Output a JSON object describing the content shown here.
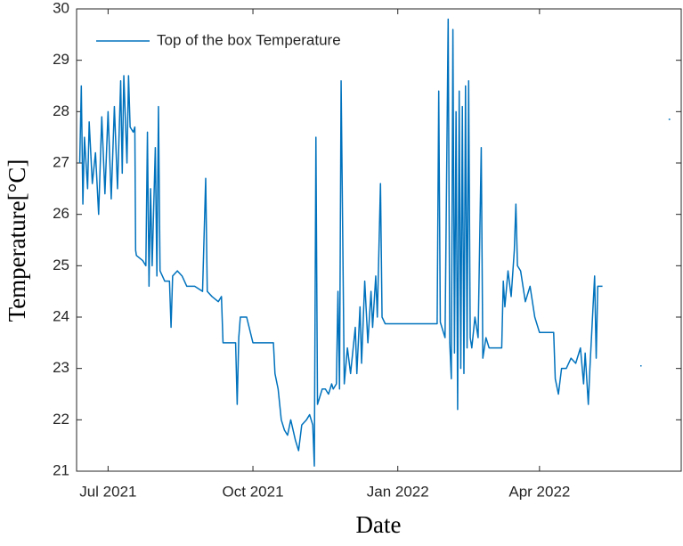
{
  "chart_data": {
    "type": "line",
    "xlabel": "Date",
    "ylabel": "Temperature[°C]",
    "x": [
      -18,
      -17,
      -16,
      -15,
      -13,
      -12,
      -10,
      -8,
      -6,
      -4,
      -2,
      0,
      2,
      4,
      6,
      8,
      9,
      10,
      12,
      13,
      14,
      16,
      17,
      17.5,
      18,
      22,
      24,
      25,
      26,
      27,
      28,
      30,
      31,
      32,
      33,
      36,
      39,
      40,
      41,
      44,
      47,
      50,
      55,
      60,
      62,
      63,
      66,
      70,
      72,
      73,
      78,
      81,
      82,
      83,
      84,
      88,
      92,
      105,
      106,
      108,
      110,
      112,
      114,
      116,
      119,
      121,
      123,
      126,
      128,
      130,
      131,
      132,
      133,
      136,
      138,
      140,
      142,
      143,
      145,
      146,
      147,
      148,
      150,
      152,
      154,
      157,
      158,
      160,
      161,
      163,
      165,
      167,
      168,
      170,
      171,
      173,
      174,
      176,
      209,
      210,
      211,
      214,
      216,
      217,
      218,
      219,
      220,
      221,
      222,
      223,
      224,
      225,
      226,
      227,
      228,
      229,
      230,
      231,
      233,
      235,
      237,
      238,
      240,
      242,
      245,
      250,
      251,
      252,
      254,
      256,
      258,
      259,
      260,
      262,
      265,
      268,
      271,
      274,
      283,
      284,
      286,
      288,
      291,
      294,
      297,
      300,
      302,
      303,
      305,
      306,
      308,
      309,
      310,
      311,
      314,
      326,
      338,
      347,
      356,
      357
    ],
    "series": [
      {
        "name": "Top of the box Temperature",
        "color": "#0072bd",
        "values": [
          27.0,
          28.5,
          26.2,
          27.5,
          26.5,
          27.8,
          26.6,
          27.2,
          26.0,
          27.9,
          26.4,
          28.0,
          26.3,
          28.1,
          26.5,
          28.6,
          26.8,
          28.7,
          27.0,
          28.7,
          27.7,
          27.6,
          27.7,
          25.3,
          25.2,
          25.1,
          25.0,
          27.6,
          24.6,
          26.5,
          25.0,
          27.3,
          24.8,
          28.1,
          24.9,
          24.7,
          24.7,
          23.8,
          24.8,
          24.9,
          24.8,
          24.6,
          24.6,
          24.5,
          26.7,
          24.5,
          24.4,
          24.3,
          24.4,
          23.5,
          23.5,
          23.5,
          22.3,
          23.6,
          24.0,
          24.0,
          23.5,
          23.5,
          22.9,
          22.6,
          22.0,
          21.8,
          21.7,
          22.0,
          21.6,
          21.4,
          21.9,
          22.0,
          22.1,
          21.9,
          21.1,
          27.5,
          22.3,
          22.6,
          22.6,
          22.5,
          22.7,
          22.6,
          22.7,
          24.5,
          22.6,
          28.6,
          22.7,
          23.4,
          22.9,
          23.8,
          22.9,
          24.2,
          23.1,
          24.7,
          23.5,
          24.5,
          23.8,
          24.8,
          24.0,
          26.6,
          24.0,
          23.87,
          23.87,
          28.4,
          23.9,
          23.6,
          29.8,
          23.5,
          22.8,
          29.6,
          23.3,
          28.0,
          22.2,
          28.4,
          23.0,
          28.1,
          22.9,
          28.5,
          23.4,
          28.6,
          23.6,
          23.4,
          24.0,
          23.6,
          27.3,
          23.2,
          23.6,
          23.4,
          23.4,
          23.4,
          24.7,
          24.2,
          24.9,
          24.4,
          25.3,
          26.2,
          25.0,
          24.9,
          24.3,
          24.6,
          24.0,
          23.7,
          23.7,
          22.8,
          22.5,
          23.0,
          23.0,
          23.2,
          23.1,
          23.4,
          22.7,
          23.3,
          22.3,
          23.0,
          24.2,
          24.8,
          23.2,
          24.6,
          24.6,
          null,
          23.05,
          null,
          27.85,
          27.85
        ]
      }
    ],
    "xlim": [
      -20,
      364
    ],
    "xticks": [
      {
        "value": 0,
        "label": "Jul 2021"
      },
      {
        "value": 92,
        "label": "Oct 2021"
      },
      {
        "value": 184,
        "label": "Jan 2022"
      },
      {
        "value": 274,
        "label": "Apr 2022"
      }
    ],
    "ylim": [
      21,
      30
    ],
    "yticks": [
      21,
      22,
      23,
      24,
      25,
      26,
      27,
      28,
      29,
      30
    ],
    "legend": "top-left"
  }
}
